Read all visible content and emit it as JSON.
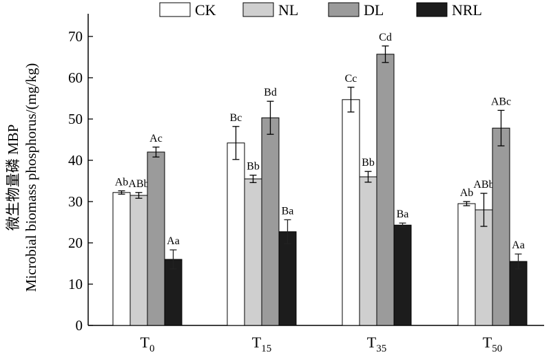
{
  "chart_data": {
    "type": "bar",
    "ylabel_line1": "微生物量磷 MBP",
    "ylabel_line2": "Microbial biomass phosphorus/(mg/kg)",
    "ylim": [
      0,
      70
    ],
    "yticks": [
      0,
      10,
      20,
      30,
      40,
      50,
      60,
      70
    ],
    "categories": [
      {
        "base": "T",
        "sub": "0"
      },
      {
        "base": "T",
        "sub": "15"
      },
      {
        "base": "T",
        "sub": "35"
      },
      {
        "base": "T",
        "sub": "50"
      }
    ],
    "legend_position": "top",
    "series": [
      {
        "name": "CK",
        "color": "#ffffff",
        "values": [
          32.2,
          44.2,
          54.7,
          29.5
        ],
        "errors": [
          0.4,
          4.0,
          3.0,
          0.5
        ],
        "labels": [
          "Ab",
          "Bc",
          "Cc",
          "Ab"
        ]
      },
      {
        "name": "NL",
        "color": "#cfcfcf",
        "values": [
          31.5,
          35.5,
          36.0,
          28.0
        ],
        "errors": [
          0.7,
          0.9,
          1.3,
          4.0
        ],
        "labels": [
          "ABb",
          "Bb",
          "Bb",
          "ABb"
        ]
      },
      {
        "name": "DL",
        "color": "#9b9b9b",
        "values": [
          42.0,
          50.3,
          65.7,
          47.8
        ],
        "errors": [
          1.2,
          4.0,
          2.0,
          4.3
        ],
        "labels": [
          "Ac",
          "Bd",
          "Cd",
          "ABc"
        ]
      },
      {
        "name": "NRL",
        "color": "#1c1c1c",
        "values": [
          16.0,
          22.7,
          24.3,
          15.5
        ],
        "errors": [
          2.3,
          2.9,
          0.5,
          1.8
        ],
        "labels": [
          "Aa",
          "Ba",
          "Ba",
          "Aa"
        ]
      }
    ]
  }
}
